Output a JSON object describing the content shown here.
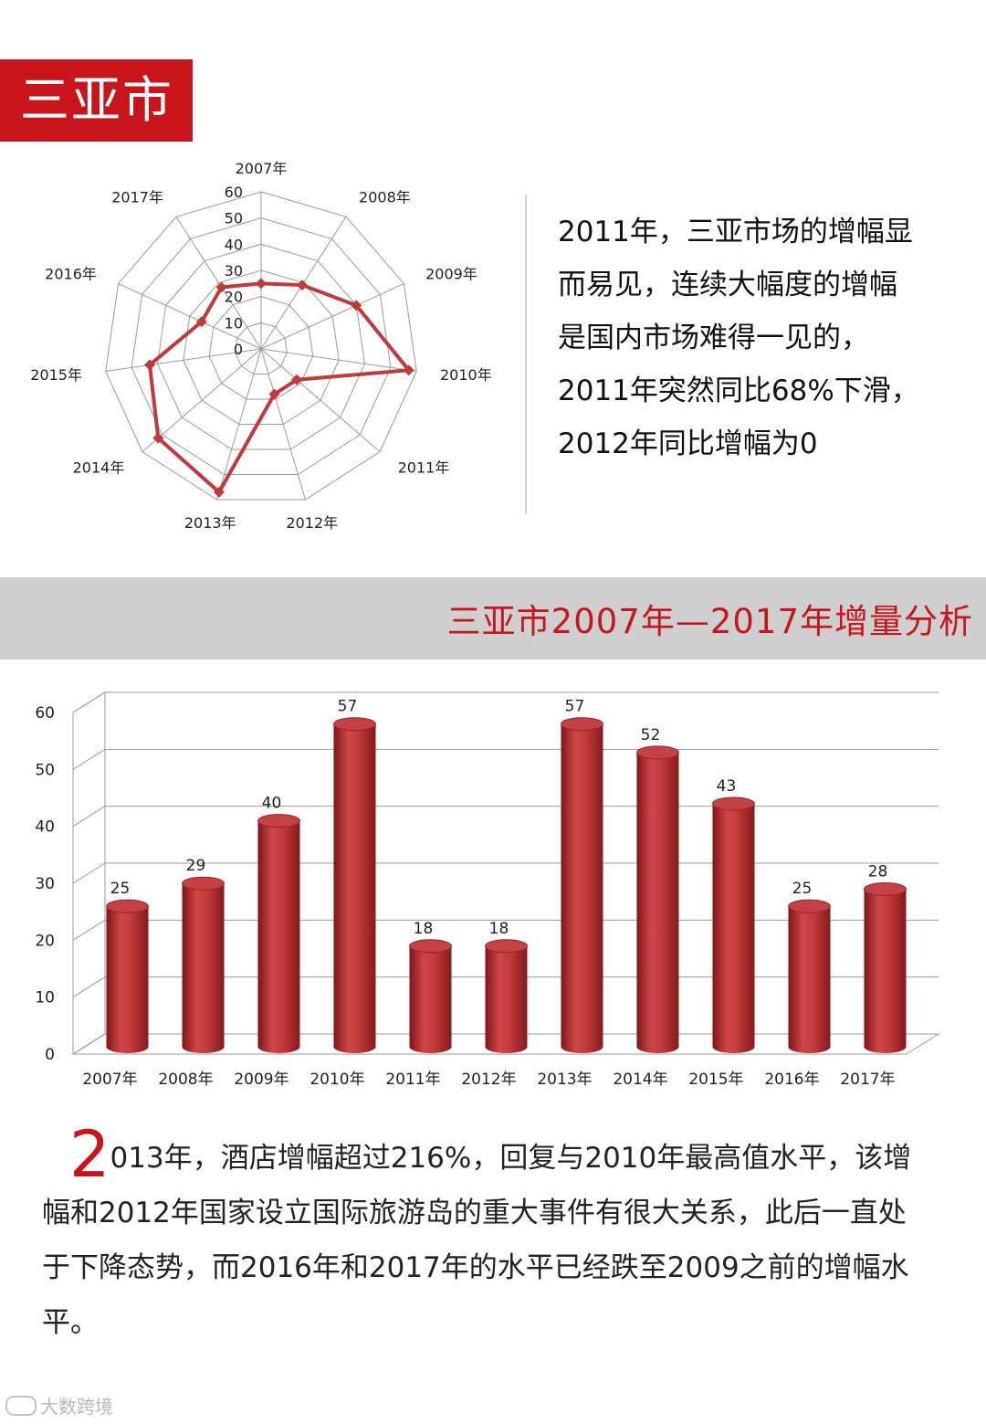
{
  "page_title": "三亚市",
  "summary_lines": [
    "2011年，三亚市场的增幅显",
    "而易见，连续大幅度的增幅",
    "是国内市场难得一见的，",
    "2011年突然同比68%下滑，",
    "2012年同比增幅为0"
  ],
  "section_title": "三亚市2007年—2017年增量分析",
  "bottom": {
    "dropcap": "2",
    "first_line_rest": "013年，酒店增幅超过216%，回复与2010年最高值水平，该增",
    "lines": [
      "幅和2012年国家设立国际旅游岛的重大事件有很大关系，此后一直处",
      "于下降态势，而2016年和2017年的水平已经跌至2009之前的增幅水",
      "平。"
    ]
  },
  "watermark": "大数跨境",
  "colors": {
    "accent": "#c8151c",
    "series": "#c0393b",
    "band": "#cfcfcf"
  },
  "chart_data": [
    {
      "type": "radar",
      "categories": [
        "2007年",
        "2008年",
        "2009年",
        "2010年",
        "2011年",
        "2012年",
        "2013年",
        "2014年",
        "2015年",
        "2016年",
        "2017年"
      ],
      "values": [
        25,
        29,
        40,
        57,
        18,
        18,
        57,
        52,
        43,
        25,
        28
      ],
      "radial_ticks": [
        "0",
        "10",
        "20",
        "30",
        "40",
        "50",
        "60"
      ],
      "rlim": [
        0,
        60
      ]
    },
    {
      "type": "bar",
      "categories": [
        "2007年",
        "2008年",
        "2009年",
        "2010年",
        "2011年",
        "2012年",
        "2013年",
        "2014年",
        "2015年",
        "2016年",
        "2017年"
      ],
      "values": [
        25,
        29,
        40,
        57,
        18,
        18,
        57,
        52,
        43,
        25,
        28
      ],
      "data_labels": [
        "25",
        "29",
        "40",
        "57",
        "18",
        "18",
        "57",
        "52",
        "43",
        "25",
        "28"
      ],
      "y_ticks": [
        "0",
        "10",
        "20",
        "30",
        "40",
        "50",
        "60"
      ],
      "ylim": [
        0,
        60
      ],
      "grid": true
    }
  ]
}
